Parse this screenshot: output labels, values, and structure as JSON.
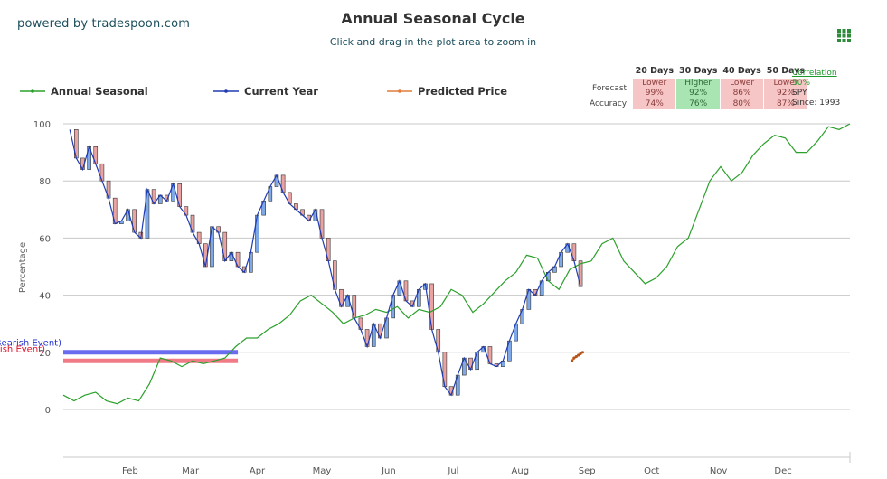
{
  "header": {
    "powered_by": "powered by tradespoon.com",
    "title": "Annual Seasonal Cycle",
    "subtitle": "Click and drag in the plot area to zoom in"
  },
  "menu": {
    "icon": "grid-menu-icon"
  },
  "legend": [
    {
      "label": "Annual Seasonal",
      "color": "#2ca02c"
    },
    {
      "label": "Current Year",
      "color": "#1f3bb3"
    },
    {
      "label": "Predicted Price",
      "color": "#e07b39"
    }
  ],
  "stats_table": {
    "headers": [
      "20 Days",
      "30 Days",
      "40 Days",
      "50 Days"
    ],
    "forecast_label": "Forecast",
    "accuracy_label": "Accuracy",
    "forecast": [
      {
        "direction": "Lower",
        "pct": "99%",
        "color": "red"
      },
      {
        "direction": "Higher",
        "pct": "92%",
        "color": "green"
      },
      {
        "direction": "Lower",
        "pct": "86%",
        "color": "red"
      },
      {
        "direction": "Lower",
        "pct": "92%",
        "color": "red"
      }
    ],
    "accuracy": [
      {
        "pct": "74%",
        "color": "red"
      },
      {
        "pct": "76%",
        "color": "green"
      },
      {
        "pct": "80%",
        "color": "red"
      },
      {
        "pct": "87%",
        "color": "red"
      }
    ]
  },
  "correlation": {
    "label": "Correlation",
    "value": "50%",
    "symbol": "SPY",
    "since": "Since: 1993"
  },
  "events": {
    "bearish_label": "SELL (Bearish Event)",
    "bullish_label": "BUY (Bullish Event)",
    "bearish_color": "#6a6cf0",
    "bullish_color": "#f07a86"
  },
  "chart_data": {
    "type": "line",
    "title": "Annual Seasonal Cycle",
    "ylabel": "Percentage",
    "xlabel": "",
    "ylim": [
      -20,
      100
    ],
    "yticks": [
      0,
      20,
      40,
      60,
      80,
      100
    ],
    "xlim": [
      0,
      365
    ],
    "x_tick_labels": [
      "Feb",
      "Mar",
      "Apr",
      "May",
      "Jun",
      "Jul",
      "Aug",
      "Sep",
      "Oct",
      "Nov",
      "Dec"
    ],
    "x_tick_days": [
      31,
      59,
      90,
      120,
      151,
      181,
      212,
      243,
      273,
      304,
      334
    ],
    "grid": true,
    "legend_position": "top-left",
    "series": [
      {
        "name": "Annual Seasonal",
        "color": "#2ca02c",
        "x": [
          0,
          5,
          10,
          15,
          20,
          25,
          30,
          35,
          40,
          45,
          50,
          55,
          60,
          65,
          70,
          75,
          80,
          85,
          90,
          95,
          100,
          105,
          110,
          115,
          120,
          125,
          130,
          135,
          140,
          145,
          150,
          155,
          160,
          165,
          170,
          175,
          180,
          185,
          190,
          195,
          200,
          205,
          210,
          215,
          220,
          225,
          230,
          235,
          240,
          245,
          250,
          255,
          260,
          265,
          270,
          275,
          280,
          285,
          290,
          295,
          300,
          305,
          310,
          315,
          320,
          325,
          330,
          335,
          340,
          345,
          350,
          355,
          360,
          365
        ],
        "y": [
          5,
          3,
          5,
          6,
          3,
          2,
          4,
          3,
          9,
          18,
          17,
          15,
          17,
          16,
          17,
          18,
          22,
          25,
          25,
          28,
          30,
          33,
          38,
          40,
          37,
          34,
          30,
          32,
          33,
          35,
          34,
          36,
          32,
          35,
          34,
          36,
          42,
          40,
          34,
          37,
          41,
          45,
          48,
          54,
          53,
          45,
          42,
          49,
          51,
          52,
          58,
          60,
          52,
          48,
          44,
          46,
          50,
          57,
          60,
          70,
          80,
          85,
          80,
          83,
          89,
          93,
          96,
          95,
          90,
          90,
          94,
          99,
          98,
          100
        ]
      },
      {
        "name": "Current Year",
        "color": "#1f3bb3",
        "x": [
          3,
          6,
          9,
          12,
          15,
          18,
          21,
          24,
          27,
          30,
          33,
          36,
          39,
          42,
          45,
          48,
          51,
          54,
          57,
          60,
          63,
          66,
          69,
          72,
          75,
          78,
          81,
          84,
          87,
          90,
          93,
          96,
          99,
          102,
          105,
          108,
          111,
          114,
          117,
          120,
          123,
          126,
          129,
          132,
          135,
          138,
          141,
          144,
          147,
          150,
          153,
          156,
          159,
          162,
          165,
          168,
          171,
          174,
          177,
          180,
          183,
          186,
          189,
          192,
          195,
          198,
          201,
          204,
          207,
          210,
          213,
          216,
          219,
          222,
          225,
          228,
          231,
          234,
          237,
          240
        ],
        "y": [
          98,
          88,
          84,
          92,
          86,
          80,
          74,
          65,
          66,
          70,
          62,
          60,
          77,
          72,
          75,
          73,
          79,
          71,
          68,
          62,
          58,
          50,
          64,
          62,
          52,
          55,
          50,
          48,
          55,
          68,
          73,
          78,
          82,
          76,
          72,
          70,
          68,
          66,
          70,
          60,
          52,
          42,
          36,
          40,
          32,
          28,
          22,
          30,
          25,
          32,
          40,
          45,
          38,
          36,
          42,
          44,
          28,
          20,
          8,
          5,
          12,
          18,
          14,
          20,
          22,
          16,
          15,
          17,
          24,
          30,
          35,
          42,
          40,
          45,
          48,
          50,
          55,
          58,
          52,
          43
        ]
      },
      {
        "name": "Predicted Price",
        "color": "#e07b39",
        "x": [
          236,
          237,
          238,
          239,
          240,
          241
        ],
        "y": [
          17,
          18,
          18.5,
          19,
          19.5,
          20
        ]
      }
    ],
    "event_bands": [
      {
        "label": "SELL (Bearish Event)",
        "x_start": 0,
        "x_end": 81,
        "y": 20
      },
      {
        "label": "BUY (Bullish Event)",
        "x_start": 0,
        "x_end": 81,
        "y": 17
      }
    ]
  }
}
